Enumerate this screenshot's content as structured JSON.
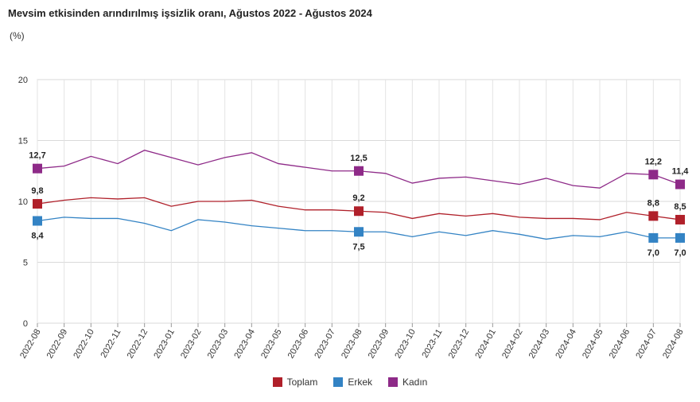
{
  "chart_data": {
    "type": "line",
    "title": "Mevsim etkisinden arındırılmış işsizlik oranı, Ağustos 2022 - Ağustos 2024",
    "unit_label": "(%)",
    "ylim": [
      0,
      20
    ],
    "yticks": [
      "0",
      "5",
      "10",
      "15",
      "20"
    ],
    "grid": true,
    "legend_position": "bottom-center",
    "categories": [
      "2022-08",
      "2022-09",
      "2022-10",
      "2022-11",
      "2022-12",
      "2023-01",
      "2023-02",
      "2023-03",
      "2023-04",
      "2023-05",
      "2023-06",
      "2023-07",
      "2023-08",
      "2023-09",
      "2023-10",
      "2023-11",
      "2023-12",
      "2024-01",
      "2024-02",
      "2024-03",
      "2024-04",
      "2024-05",
      "2024-06",
      "2024-07",
      "2024-08"
    ],
    "series": [
      {
        "name": "Toplam",
        "color": "#b0202a",
        "values": [
          9.8,
          10.1,
          10.3,
          10.2,
          10.3,
          9.6,
          10.0,
          10.0,
          10.1,
          9.6,
          9.3,
          9.3,
          9.2,
          9.1,
          8.6,
          9.0,
          8.8,
          9.0,
          8.7,
          8.6,
          8.6,
          8.5,
          9.1,
          8.8,
          8.5
        ],
        "labels": [
          {
            "index": 0,
            "text": "9,8",
            "pos": "above"
          },
          {
            "index": 12,
            "text": "9,2",
            "pos": "above"
          },
          {
            "index": 23,
            "text": "8,8",
            "pos": "above"
          },
          {
            "index": 24,
            "text": "8,5",
            "pos": "above"
          }
        ]
      },
      {
        "name": "Erkek",
        "color": "#3383c4",
        "values": [
          8.4,
          8.7,
          8.6,
          8.6,
          8.2,
          7.6,
          8.5,
          8.3,
          8.0,
          7.8,
          7.6,
          7.6,
          7.5,
          7.5,
          7.1,
          7.5,
          7.2,
          7.6,
          7.3,
          6.9,
          7.2,
          7.1,
          7.5,
          7.0,
          7.0
        ],
        "labels": [
          {
            "index": 0,
            "text": "8,4",
            "pos": "below"
          },
          {
            "index": 12,
            "text": "7,5",
            "pos": "below"
          },
          {
            "index": 23,
            "text": "7,0",
            "pos": "below"
          },
          {
            "index": 24,
            "text": "7,0",
            "pos": "below"
          }
        ]
      },
      {
        "name": "Kadın",
        "color": "#8e2a88",
        "values": [
          12.7,
          12.9,
          13.7,
          13.1,
          14.2,
          13.6,
          13.0,
          13.6,
          14.0,
          13.1,
          12.8,
          12.5,
          12.5,
          12.3,
          11.5,
          11.9,
          12.0,
          11.7,
          11.4,
          11.9,
          11.3,
          11.1,
          12.3,
          12.2,
          11.4
        ],
        "labels": [
          {
            "index": 0,
            "text": "12,7",
            "pos": "above"
          },
          {
            "index": 12,
            "text": "12,5",
            "pos": "above"
          },
          {
            "index": 23,
            "text": "12,2",
            "pos": "above"
          },
          {
            "index": 24,
            "text": "11,4",
            "pos": "above"
          }
        ]
      }
    ]
  }
}
